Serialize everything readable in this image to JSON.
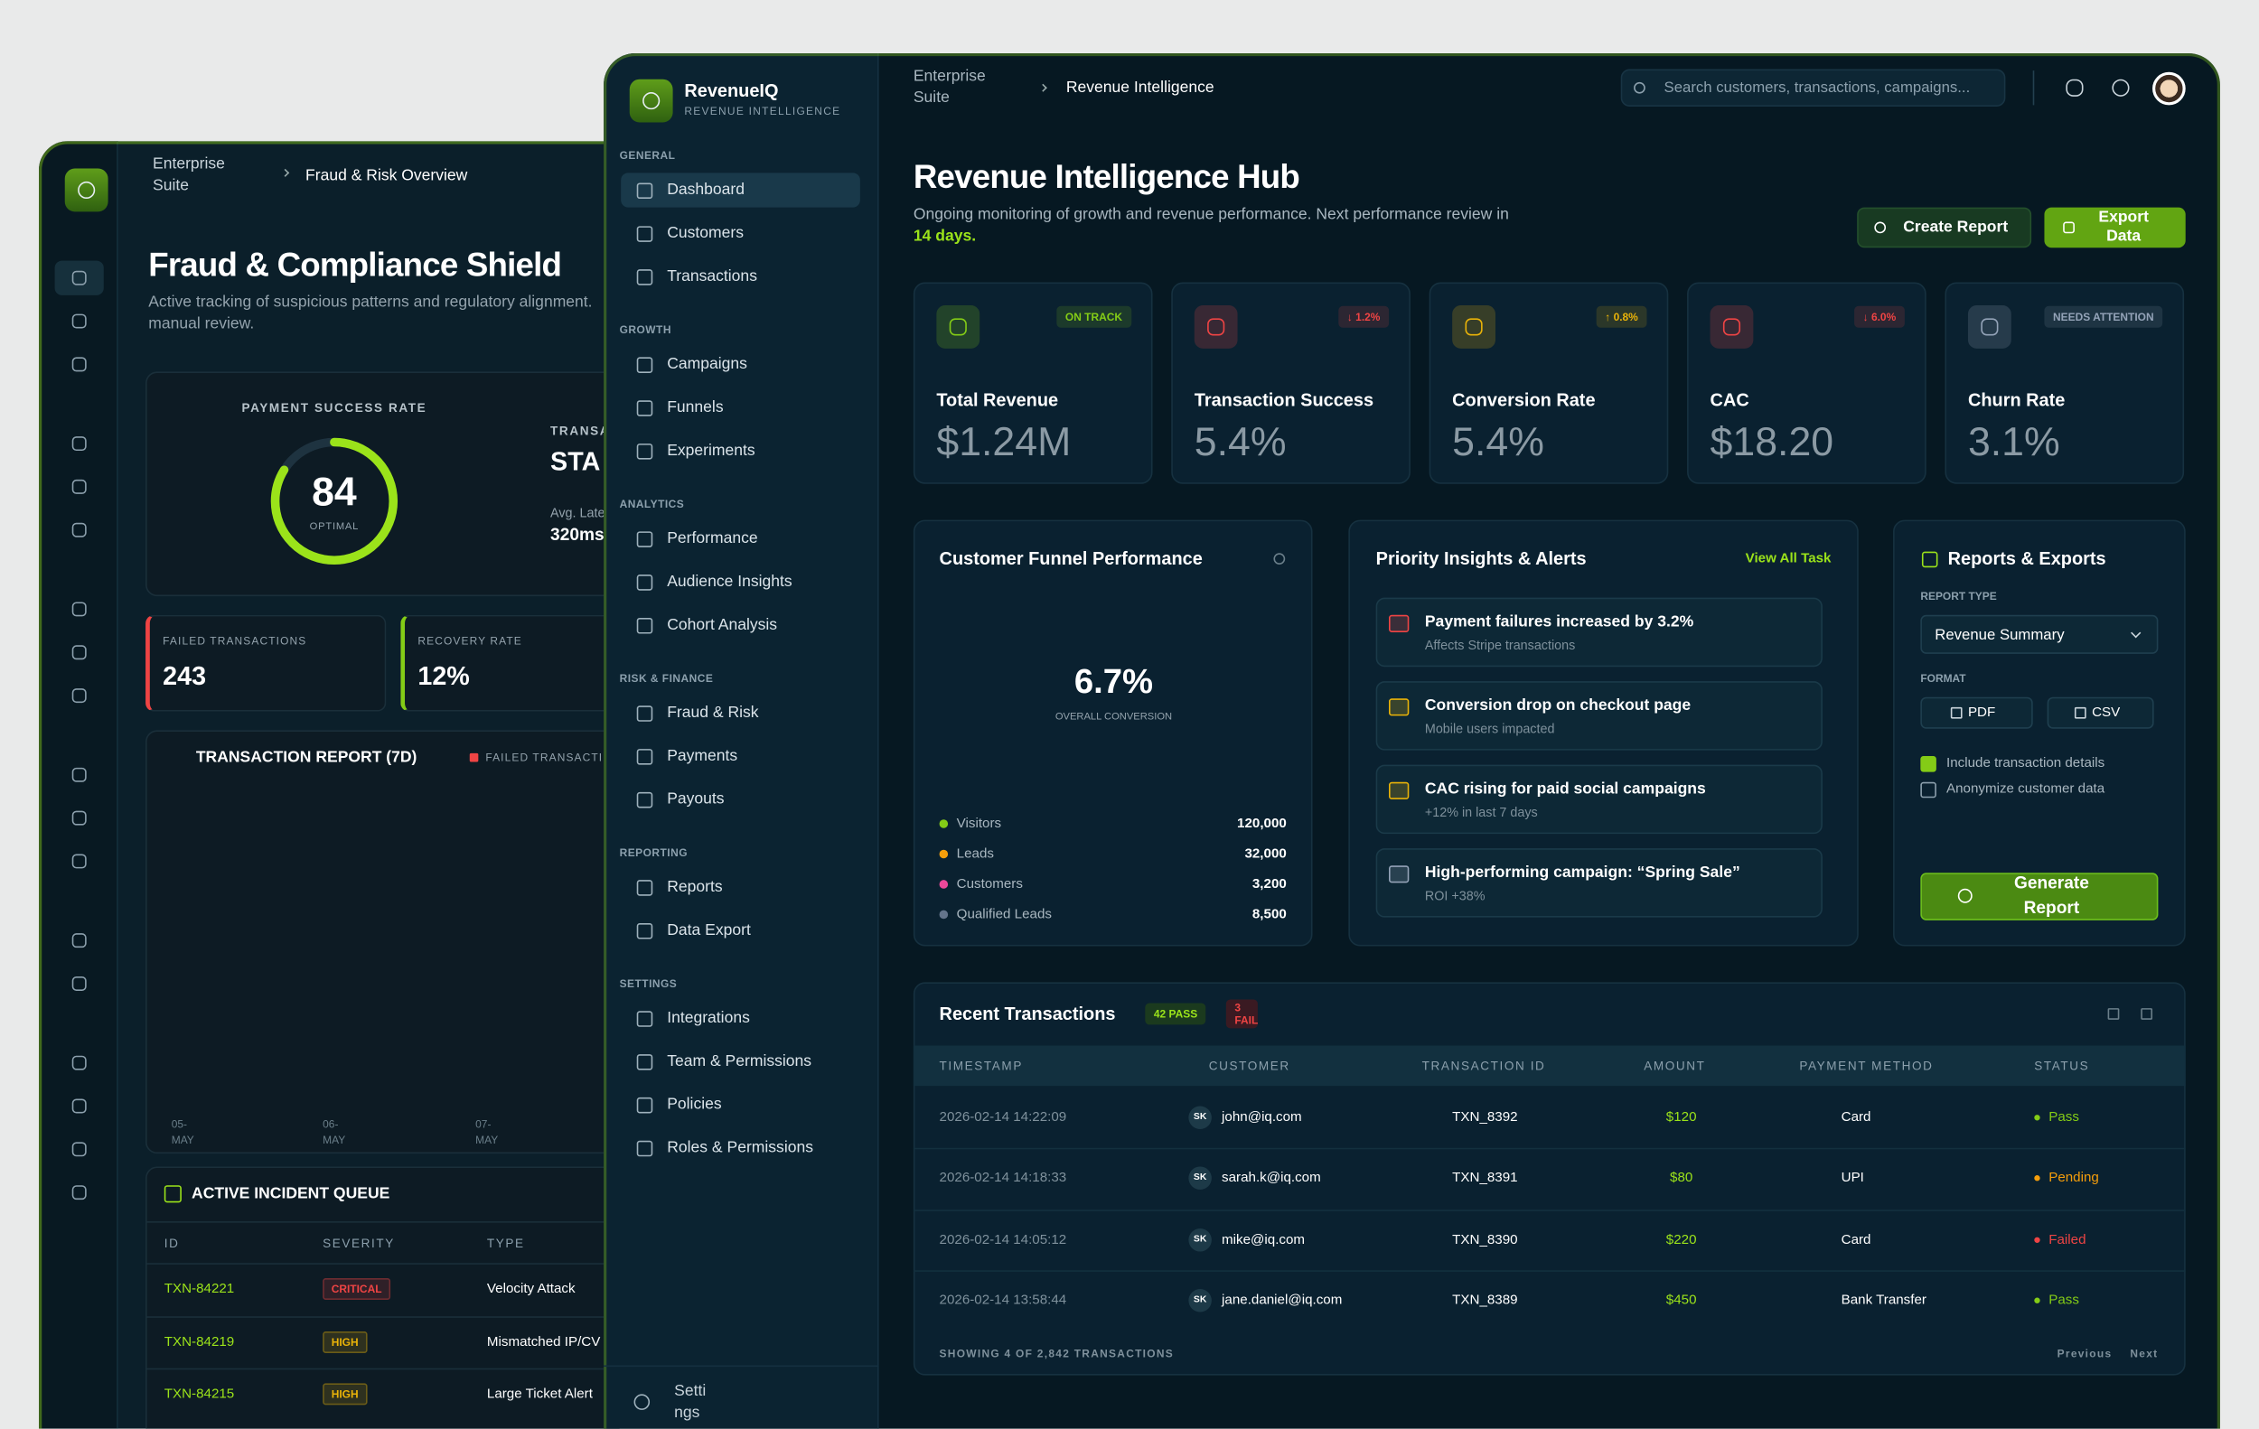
{
  "back_window": {
    "breadcrumb": [
      "Enterprise Suite",
      "Fraud & Risk Overview"
    ],
    "title": "Fraud & Compliance Shield",
    "subtitle": "Active tracking of suspicious patterns and regulatory alignment. manual review.",
    "gauge": {
      "label": "PAYMENT SUCCESS RATE",
      "value": "84",
      "status": "OPTIMAL"
    },
    "side_stat": {
      "label": "TRANSA",
      "value": "STA",
      "note": "Avg. Late",
      "note_value": "320ms"
    },
    "metrics": [
      {
        "label": "FAILED TRANSACTIONS",
        "value": "243",
        "color": "#ef4444"
      },
      {
        "label": "RECOVERY RATE",
        "value": "12%",
        "color": "#84cc16"
      }
    ],
    "report": {
      "title": "TRANSACTION REPORT (7D)",
      "legend": "FAILED TRANSACTI",
      "dates": [
        "05-MAY",
        "06-MAY",
        "07-MAY"
      ]
    },
    "incidents": {
      "title": "ACTIVE INCIDENT QUEUE",
      "columns": [
        "ID",
        "SEVERITY",
        "TYPE"
      ],
      "rows": [
        [
          "TXN-84221",
          "CRITICAL",
          "Velocity Attack"
        ],
        [
          "TXN-84219",
          "HIGH",
          "Mismatched IP/CV"
        ],
        [
          "TXN-84215",
          "HIGH",
          "Large Ticket Alert"
        ]
      ],
      "severity_colors": [
        "#ef4444",
        "#eab308",
        "#eab308"
      ]
    }
  },
  "front_window": {
    "brand": {
      "name": "RevenueIQ",
      "tagline": "REVENUE INTELLIGENCE"
    },
    "nav": [
      {
        "section": "GENERAL",
        "items": [
          "Dashboard",
          "Customers",
          "Transactions"
        ]
      },
      {
        "section": "GROWTH",
        "items": [
          "Campaigns",
          "Funnels",
          "Experiments"
        ]
      },
      {
        "section": "ANALYTICS",
        "items": [
          "Performance",
          "Audience Insights",
          "Cohort Analysis"
        ]
      },
      {
        "section": "RISK & FINANCE",
        "items": [
          "Fraud & Risk",
          "Payments",
          "Payouts"
        ]
      },
      {
        "section": "REPORTING",
        "items": [
          "Reports",
          "Data Export"
        ]
      },
      {
        "section": "SETTINGS",
        "items": [
          "Integrations",
          "Team & Permissions",
          "Policies",
          "Roles & Permissions"
        ]
      }
    ],
    "settings_link": "Settings",
    "breadcrumb": [
      "Enterprise Suite",
      "Revenue Intelligence"
    ],
    "search_placeholder": "Search customers, transactions, campaigns...",
    "title": "Revenue Intelligence Hub",
    "subtitle": "Ongoing monitoring of growth and revenue performance. Next performance review in",
    "subtitle_highlight": "14 days.",
    "actions": [
      "Create Report",
      "Export Data"
    ],
    "kpis": [
      {
        "label": "Total Revenue",
        "value": "$1.24M",
        "badge": "ON TRACK",
        "color": "#84cc16"
      },
      {
        "label": "Transaction Success",
        "value": "5.4%",
        "badge": "↓ 1.2%",
        "color": "#ef4444"
      },
      {
        "label": "Conversion Rate",
        "value": "5.4%",
        "badge": "↑ 0.8%",
        "color": "#eab308"
      },
      {
        "label": "CAC",
        "value": "$18.20",
        "badge": "↓ 6.0%",
        "color": "#ef4444"
      },
      {
        "label": "Churn Rate",
        "value": "3.1%",
        "badge": "NEEDS ATTENTION",
        "color": "#94a3b8"
      }
    ],
    "funnel": {
      "title": "Customer Funnel Performance",
      "value": "6.7%",
      "caption": "OVERALL CONVERSION",
      "stages": [
        {
          "name": "Visitors",
          "value": "120,000",
          "color": "#84cc16"
        },
        {
          "name": "Leads",
          "value": "32,000",
          "color": "#f59e0b"
        },
        {
          "name": "Customers",
          "value": "3,200",
          "color": "#ec4899"
        },
        {
          "name": "Qualified Leads",
          "value": "8,500",
          "color": "#64748b"
        }
      ]
    },
    "insights": {
      "title": "Priority Insights & Alerts",
      "link": "View All Task",
      "items": [
        {
          "title": "Payment failures increased by 3.2%",
          "detail": "Affects Stripe transactions",
          "color": "#ef4444"
        },
        {
          "title": "Conversion drop on checkout page",
          "detail": "Mobile users impacted",
          "color": "#eab308"
        },
        {
          "title": "CAC rising for paid social campaigns",
          "detail": "+12% in last 7 days",
          "color": "#eab308"
        },
        {
          "title": "High-performing campaign: “Spring Sale”",
          "detail": "ROI +38%",
          "color": "#94a3b8"
        }
      ]
    },
    "reports": {
      "title": "Reports & Exports",
      "type_label": "REPORT TYPE",
      "type_value": "Revenue Summary",
      "format_label": "FORMAT",
      "formats": [
        "PDF",
        "CSV"
      ],
      "options": [
        {
          "label": "Include transaction details",
          "checked": true
        },
        {
          "label": "Anonymize customer data",
          "checked": false
        }
      ],
      "button": "Generate Report"
    },
    "transactions": {
      "title": "Recent Transactions",
      "pass": "42 PASS",
      "fail": "3 FAIL",
      "columns": [
        "TIMESTAMP",
        "CUSTOMER",
        "TRANSACTION ID",
        "AMOUNT",
        "PAYMENT METHOD",
        "STATUS"
      ],
      "rows": [
        {
          "timestamp": "2026-02-14 14:22:09",
          "initials": "SK",
          "customer": "john@iq.com",
          "id": "TXN_8392",
          "amount": "$120",
          "method": "Card",
          "status": "Pass",
          "color": "#84cc16"
        },
        {
          "timestamp": "2026-02-14 14:18:33",
          "initials": "SK",
          "customer": "sarah.k@iq.com",
          "id": "TXN_8391",
          "amount": "$80",
          "method": "UPI",
          "status": "Pending",
          "color": "#f59e0b"
        },
        {
          "timestamp": "2026-02-14 14:05:12",
          "initials": "SK",
          "customer": "mike@iq.com",
          "id": "TXN_8390",
          "amount": "$220",
          "method": "Card",
          "status": "Failed",
          "color": "#ef4444"
        },
        {
          "timestamp": "2026-02-14 13:58:44",
          "initials": "SK",
          "customer": "jane.daniel@iq.com",
          "id": "TXN_8389",
          "amount": "$450",
          "method": "Bank Transfer",
          "status": "Pass",
          "color": "#84cc16"
        }
      ],
      "footer": "SHOWING 4 OF 2,842 TRANSACTIONS",
      "pager": [
        "Previous",
        "Next"
      ]
    }
  }
}
